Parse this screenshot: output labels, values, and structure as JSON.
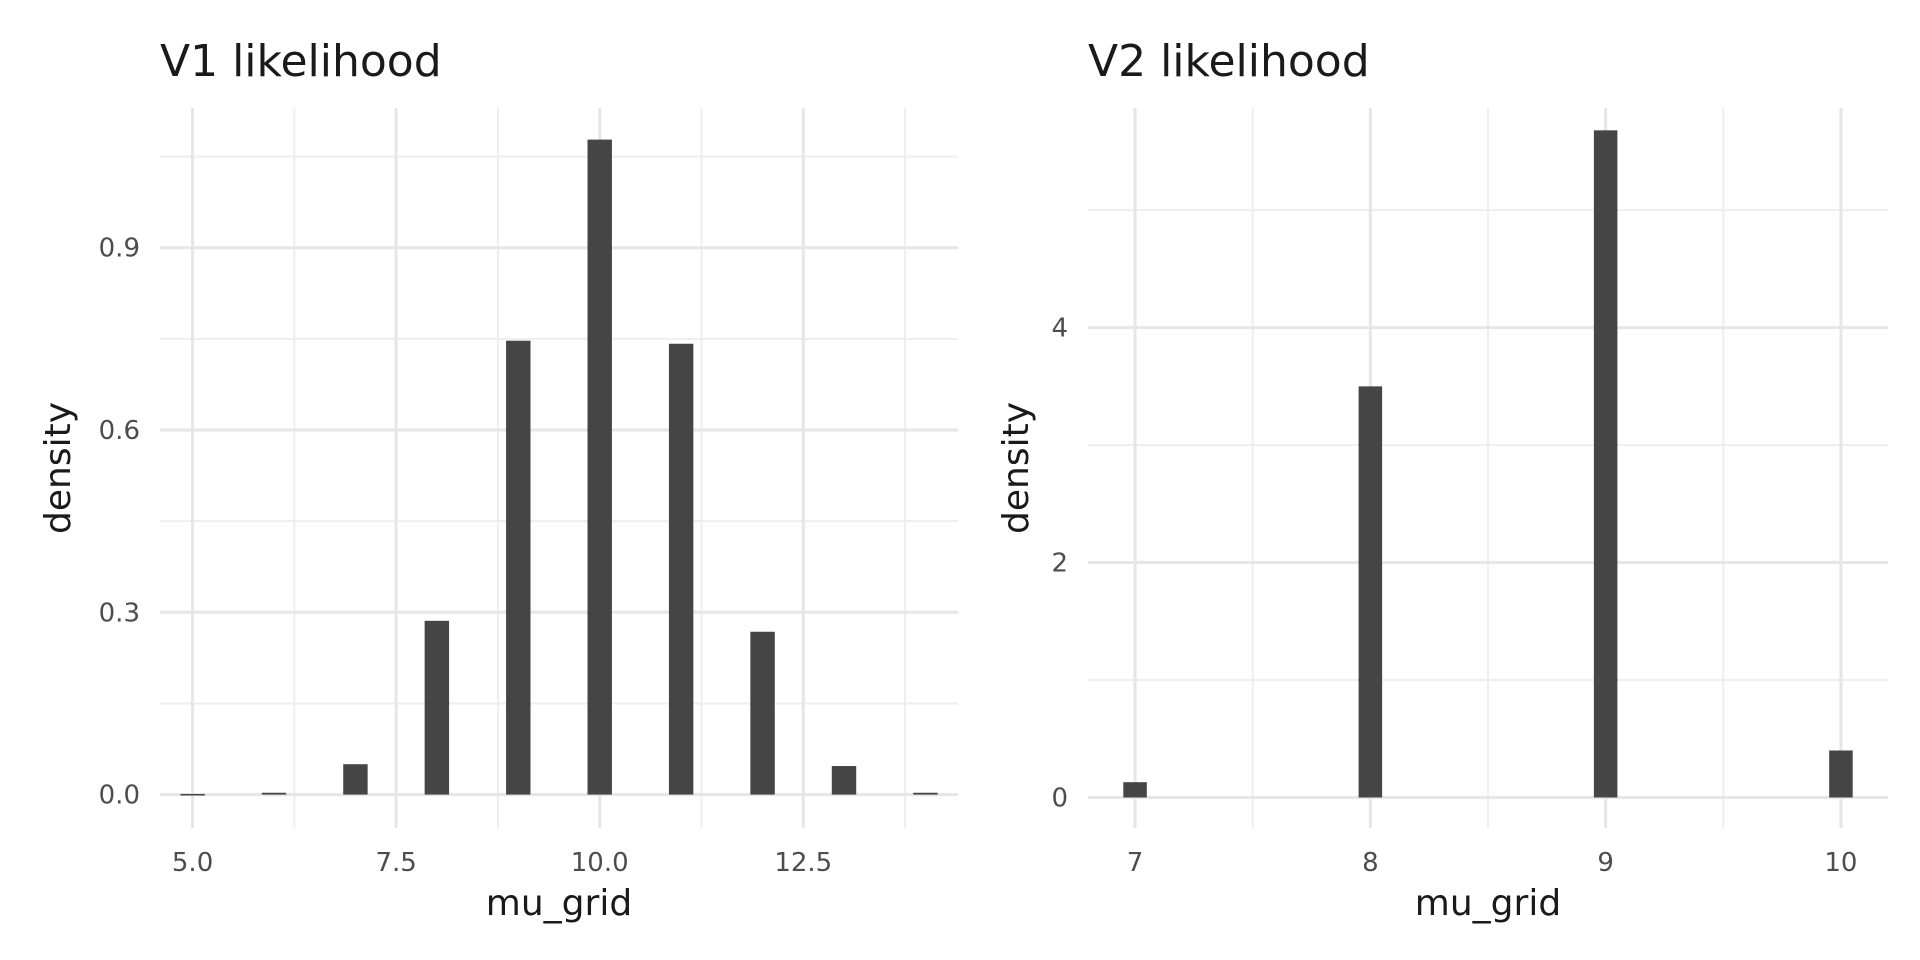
{
  "chart_data": [
    {
      "type": "bar",
      "title": "V1 likelihood",
      "xlabel": "mu_grid",
      "ylabel": "density",
      "xlim": [
        4.6,
        14.4
      ],
      "ylim": [
        -0.055,
        1.13
      ],
      "x_ticks": [
        5.0,
        7.5,
        10.0,
        12.5
      ],
      "x_tick_labels": [
        "5.0",
        "7.5",
        "10.0",
        "12.5"
      ],
      "x_minor_ticks": [
        6.25,
        8.75,
        11.25,
        13.75
      ],
      "y_ticks": [
        0.0,
        0.3,
        0.6,
        0.9
      ],
      "y_tick_labels": [
        "0.0",
        "0.3",
        "0.6",
        "0.9"
      ],
      "y_minor_ticks": [
        0.15,
        0.45,
        0.75,
        1.05
      ],
      "bar_width": 0.3,
      "x": [
        5,
        6,
        7,
        8,
        9,
        10,
        11,
        12,
        13,
        14
      ],
      "values": [
        0.001,
        0.003,
        0.05,
        0.286,
        0.747,
        1.078,
        0.742,
        0.268,
        0.047,
        0.003
      ],
      "grid": true,
      "legend": "none"
    },
    {
      "type": "bar",
      "title": "V2 likelihood",
      "xlabel": "mu_grid",
      "ylabel": "density",
      "xlim": [
        6.8,
        10.2
      ],
      "ylim": [
        -0.26,
        5.87
      ],
      "x_ticks": [
        7,
        8,
        9,
        10
      ],
      "x_tick_labels": [
        "7",
        "8",
        "9",
        "10"
      ],
      "x_minor_ticks": [
        7.5,
        8.5,
        9.5
      ],
      "y_ticks": [
        0,
        2,
        4
      ],
      "y_tick_labels": [
        "0",
        "2",
        "4"
      ],
      "y_minor_ticks": [
        1,
        3,
        5
      ],
      "bar_width": 0.1,
      "x": [
        7,
        8,
        9,
        10
      ],
      "values": [
        0.13,
        3.5,
        5.68,
        0.4
      ],
      "grid": true,
      "legend": "none"
    }
  ]
}
